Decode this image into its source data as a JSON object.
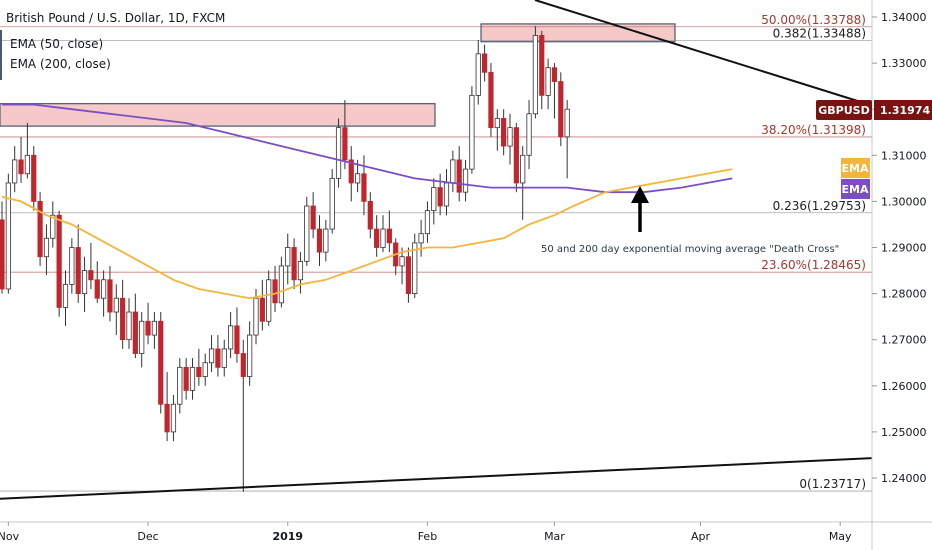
{
  "title": "British Pound / U.S. Dollar, 1D, FXCM",
  "legend": {
    "ema_fast": "EMA (50, close)",
    "ema_slow": "EMA (200, close)"
  },
  "colors": {
    "up": "#ffffff",
    "down": "#c0262d",
    "wick": "#333333",
    "ema_fast": "#f5b53d",
    "ema_slow": "#7a4fc4",
    "resistance_zone": "#f6c9c9",
    "trendline": "#111111",
    "fib_line": "#b05555",
    "fib_line_gray": "#8a8a8a",
    "price_tag": "#7a1212"
  },
  "price_tag": {
    "label": "GBPUSD",
    "value": "1.31974"
  },
  "ema_tags": {
    "fast": "EMA",
    "slow": "EMA"
  },
  "annotation": "50 and 200 day exponential moving average \"Death Cross\"",
  "fib_levels": [
    {
      "label": "0.382(1.33488)",
      "value": 1.33488,
      "color": "gray"
    },
    {
      "label": "50.00%(1.33788)",
      "value": 1.33788,
      "color": "red"
    },
    {
      "label": "38.20%(1.31398)",
      "value": 1.31398,
      "color": "red"
    },
    {
      "label": "0.236(1.29753)",
      "value": 1.29753,
      "color": "gray"
    },
    {
      "label": "23.60%(1.28465)",
      "value": 1.28465,
      "color": "red"
    },
    {
      "label": "0(1.23717)",
      "value": 1.23717,
      "color": "gray"
    }
  ],
  "chart_data": {
    "type": "candlestick",
    "title": "British Pound / U.S. Dollar, 1D, FXCM",
    "y_ticks": [
      "1.34000",
      "1.33000",
      "1.32000",
      "1.31000",
      "1.30000",
      "1.29000",
      "1.28000",
      "1.27000",
      "1.26000",
      "1.25000",
      "1.24000"
    ],
    "y_tick_values": [
      1.34,
      1.33,
      1.32,
      1.31,
      1.3,
      1.29,
      1.28,
      1.27,
      1.26,
      1.25,
      1.24
    ],
    "ylim": [
      1.2335,
      1.3435
    ],
    "x_labels": [
      "Nov",
      "Dec",
      "2019",
      "Feb",
      "Mar",
      "Apr",
      "May"
    ],
    "x_label_index": [
      2,
      24,
      46,
      68,
      88,
      111,
      133
    ],
    "x_range": [
      1,
      139
    ],
    "candles": [
      [
        1.296,
        1.3,
        1.28,
        1.281
      ],
      [
        1.281,
        1.306,
        1.28,
        1.304
      ],
      [
        1.304,
        1.312,
        1.302,
        1.309
      ],
      [
        1.309,
        1.314,
        1.304,
        1.306
      ],
      [
        1.306,
        1.317,
        1.305,
        1.31
      ],
      [
        1.31,
        1.312,
        1.298,
        1.3
      ],
      [
        1.3,
        1.302,
        1.286,
        1.288
      ],
      [
        1.288,
        1.295,
        1.284,
        1.292
      ],
      [
        1.292,
        1.3,
        1.29,
        1.297
      ],
      [
        1.297,
        1.298,
        1.275,
        1.277
      ],
      [
        1.277,
        1.285,
        1.273,
        1.282
      ],
      [
        1.282,
        1.292,
        1.28,
        1.29
      ],
      [
        1.29,
        1.295,
        1.278,
        1.28
      ],
      [
        1.28,
        1.288,
        1.276,
        1.285
      ],
      [
        1.285,
        1.291,
        1.281,
        1.283
      ],
      [
        1.283,
        1.287,
        1.278,
        1.279
      ],
      [
        1.279,
        1.285,
        1.275,
        1.283
      ],
      [
        1.283,
        1.286,
        1.274,
        1.276
      ],
      [
        1.276,
        1.282,
        1.271,
        1.279
      ],
      [
        1.279,
        1.283,
        1.268,
        1.27
      ],
      [
        1.27,
        1.279,
        1.268,
        1.276
      ],
      [
        1.276,
        1.28,
        1.266,
        1.267
      ],
      [
        1.267,
        1.276,
        1.264,
        1.274
      ],
      [
        1.274,
        1.278,
        1.269,
        1.271
      ],
      [
        1.271,
        1.276,
        1.268,
        1.274
      ],
      [
        1.274,
        1.276,
        1.254,
        1.256
      ],
      [
        1.256,
        1.263,
        1.248,
        1.25
      ],
      [
        1.25,
        1.258,
        1.248,
        1.256
      ],
      [
        1.256,
        1.266,
        1.254,
        1.264
      ],
      [
        1.264,
        1.266,
        1.257,
        1.259
      ],
      [
        1.259,
        1.266,
        1.257,
        1.264
      ],
      [
        1.264,
        1.268,
        1.26,
        1.262
      ],
      [
        1.262,
        1.267,
        1.26,
        1.265
      ],
      [
        1.265,
        1.271,
        1.263,
        1.268
      ],
      [
        1.268,
        1.271,
        1.262,
        1.264
      ],
      [
        1.264,
        1.27,
        1.262,
        1.268
      ],
      [
        1.268,
        1.276,
        1.266,
        1.273
      ],
      [
        1.273,
        1.277,
        1.265,
        1.267
      ],
      [
        1.267,
        1.27,
        1.237,
        1.262
      ],
      [
        1.262,
        1.274,
        1.26,
        1.271
      ],
      [
        1.271,
        1.281,
        1.269,
        1.279
      ],
      [
        1.279,
        1.283,
        1.272,
        1.274
      ],
      [
        1.274,
        1.285,
        1.273,
        1.283
      ],
      [
        1.283,
        1.286,
        1.276,
        1.278
      ],
      [
        1.278,
        1.288,
        1.277,
        1.286
      ],
      [
        1.286,
        1.293,
        1.282,
        1.29
      ],
      [
        1.29,
        1.292,
        1.281,
        1.283
      ],
      [
        1.283,
        1.289,
        1.28,
        1.287
      ],
      [
        1.287,
        1.301,
        1.286,
        1.299
      ],
      [
        1.299,
        1.302,
        1.292,
        1.294
      ],
      [
        1.294,
        1.297,
        1.286,
        1.289
      ],
      [
        1.289,
        1.296,
        1.287,
        1.294
      ],
      [
        1.294,
        1.307,
        1.293,
        1.305
      ],
      [
        1.305,
        1.318,
        1.303,
        1.316
      ],
      [
        1.316,
        1.322,
        1.307,
        1.309
      ],
      [
        1.309,
        1.312,
        1.3,
        1.304
      ],
      [
        1.304,
        1.309,
        1.302,
        1.306
      ],
      [
        1.306,
        1.31,
        1.297,
        1.3
      ],
      [
        1.3,
        1.302,
        1.292,
        1.294
      ],
      [
        1.294,
        1.297,
        1.288,
        1.29
      ],
      [
        1.29,
        1.297,
        1.289,
        1.294
      ],
      [
        1.294,
        1.298,
        1.289,
        1.291
      ],
      [
        1.291,
        1.292,
        1.284,
        1.286
      ],
      [
        1.286,
        1.29,
        1.282,
        1.288
      ],
      [
        1.288,
        1.29,
        1.278,
        1.28
      ],
      [
        1.28,
        1.293,
        1.279,
        1.291
      ],
      [
        1.291,
        1.296,
        1.288,
        1.293
      ],
      [
        1.293,
        1.3,
        1.291,
        1.298
      ],
      [
        1.298,
        1.305,
        1.295,
        1.303
      ],
      [
        1.303,
        1.306,
        1.297,
        1.299
      ],
      [
        1.299,
        1.307,
        1.297,
        1.304
      ],
      [
        1.304,
        1.311,
        1.302,
        1.309
      ],
      [
        1.309,
        1.312,
        1.3,
        1.302
      ],
      [
        1.302,
        1.309,
        1.3,
        1.307
      ],
      [
        1.307,
        1.325,
        1.306,
        1.323
      ],
      [
        1.323,
        1.335,
        1.321,
        1.332
      ],
      [
        1.332,
        1.334,
        1.326,
        1.328
      ],
      [
        1.328,
        1.33,
        1.314,
        1.316
      ],
      [
        1.316,
        1.32,
        1.311,
        1.318
      ],
      [
        1.318,
        1.32,
        1.31,
        1.312
      ],
      [
        1.312,
        1.319,
        1.308,
        1.316
      ],
      [
        1.316,
        1.317,
        1.302,
        1.304
      ],
      [
        1.304,
        1.312,
        1.296,
        1.31
      ],
      [
        1.31,
        1.322,
        1.307,
        1.319
      ],
      [
        1.319,
        1.338,
        1.318,
        1.336
      ],
      [
        1.336,
        1.337,
        1.32,
        1.323
      ],
      [
        1.323,
        1.331,
        1.32,
        1.329
      ],
      [
        1.329,
        1.33,
        1.318,
        1.326
      ],
      [
        1.326,
        1.328,
        1.312,
        1.314
      ],
      [
        1.314,
        1.322,
        1.305,
        1.32
      ]
    ],
    "ema_50": [
      [
        1,
        1.301
      ],
      [
        4,
        1.3
      ],
      [
        8,
        1.297
      ],
      [
        12,
        1.295
      ],
      [
        16,
        1.292
      ],
      [
        20,
        1.289
      ],
      [
        24,
        1.286
      ],
      [
        28,
        1.283
      ],
      [
        32,
        1.281
      ],
      [
        36,
        1.28
      ],
      [
        40,
        1.279
      ],
      [
        44,
        1.28
      ],
      [
        48,
        1.282
      ],
      [
        52,
        1.283
      ],
      [
        56,
        1.285
      ],
      [
        60,
        1.287
      ],
      [
        64,
        1.289
      ],
      [
        68,
        1.29
      ],
      [
        72,
        1.29
      ],
      [
        76,
        1.291
      ],
      [
        80,
        1.292
      ],
      [
        84,
        1.295
      ],
      [
        88,
        1.297
      ],
      [
        91,
        1.299
      ],
      [
        96,
        1.302
      ],
      [
        100,
        1.303
      ],
      [
        104,
        1.304
      ],
      [
        108,
        1.305
      ],
      [
        112,
        1.306
      ],
      [
        116,
        1.307
      ]
    ],
    "ema_200": [
      [
        1,
        1.321
      ],
      [
        6,
        1.321
      ],
      [
        12,
        1.32
      ],
      [
        18,
        1.319
      ],
      [
        24,
        1.318
      ],
      [
        30,
        1.317
      ],
      [
        36,
        1.315
      ],
      [
        42,
        1.313
      ],
      [
        48,
        1.311
      ],
      [
        54,
        1.309
      ],
      [
        60,
        1.307
      ],
      [
        66,
        1.305
      ],
      [
        72,
        1.304
      ],
      [
        78,
        1.303
      ],
      [
        84,
        1.303
      ],
      [
        90,
        1.303
      ],
      [
        96,
        1.302
      ],
      [
        102,
        1.302
      ],
      [
        108,
        1.303
      ],
      [
        112,
        1.304
      ],
      [
        116,
        1.305
      ]
    ]
  }
}
